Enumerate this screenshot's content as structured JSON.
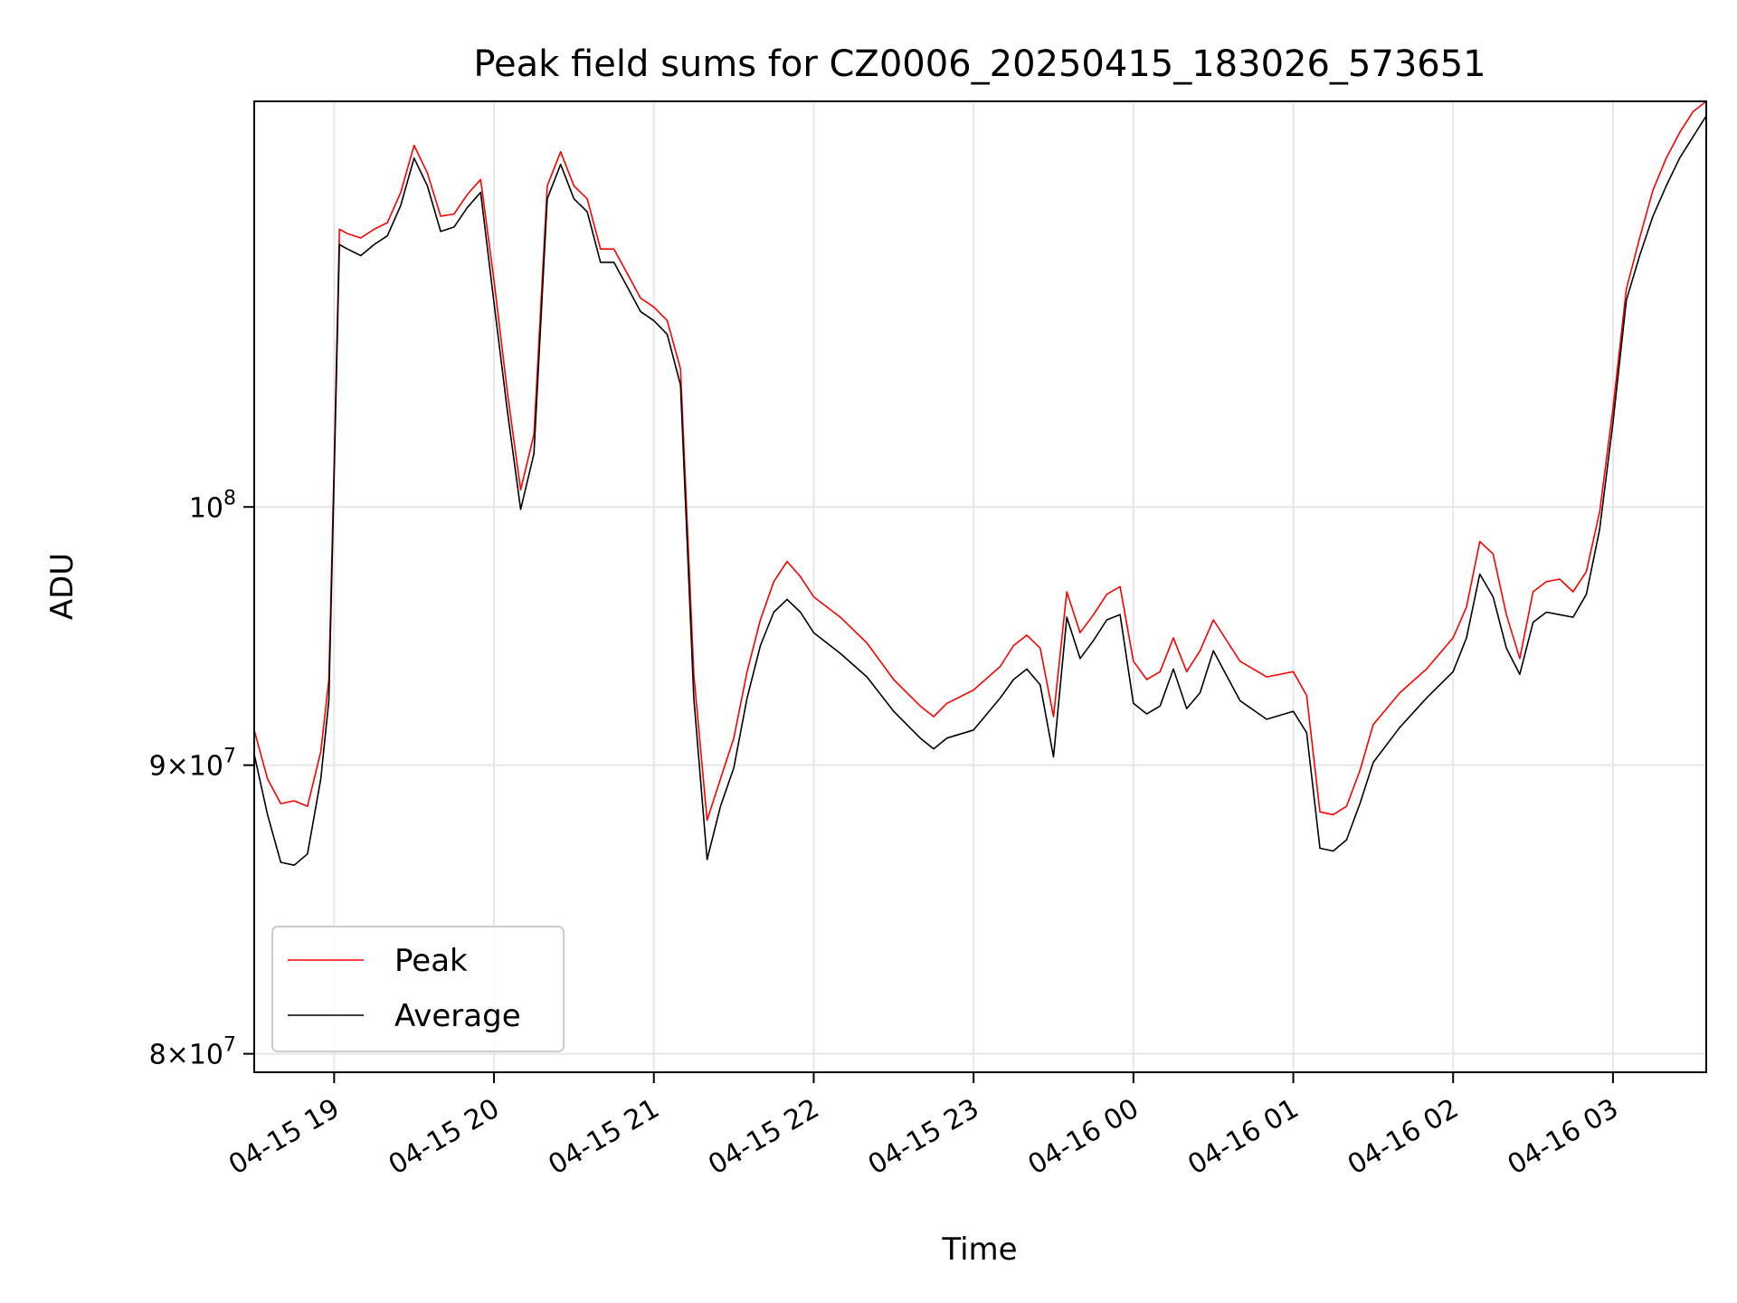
{
  "chart_data": {
    "type": "line",
    "title": "Peak field sums for CZ0006_20250415_183026_573651",
    "xlabel": "Time",
    "ylabel": "ADU",
    "y_scale": "log",
    "xlim": [
      "2025-04-15 18:30",
      "2025-04-16 03:35"
    ],
    "ylim": [
      79400000,
      118000000
    ],
    "x_ticks": [
      "04-15 19",
      "04-15 20",
      "04-15 21",
      "04-15 22",
      "04-15 23",
      "04-16 00",
      "04-16 01",
      "04-16 02",
      "04-16 03"
    ],
    "x_tick_times": [
      "2025-04-15 19:00",
      "2025-04-15 20:00",
      "2025-04-15 21:00",
      "2025-04-15 22:00",
      "2025-04-15 23:00",
      "2025-04-16 00:00",
      "2025-04-16 01:00",
      "2025-04-16 02:00",
      "2025-04-16 03:00"
    ],
    "y_ticks": [
      {
        "value": 80000000,
        "mantissa": "8",
        "base": "10",
        "exp": "7"
      },
      {
        "value": 90000000,
        "mantissa": "9",
        "base": "10",
        "exp": "7"
      },
      {
        "value": 100000000,
        "mantissa": "",
        "base": "10",
        "exp": "8"
      }
    ],
    "grid": true,
    "legend": "lower-left",
    "series": [
      {
        "name": "Peak",
        "color": "#ff0000",
        "x": [
          "2025-04-15 18:30",
          "2025-04-15 18:35",
          "2025-04-15 18:40",
          "2025-04-15 18:45",
          "2025-04-15 18:50",
          "2025-04-15 18:55",
          "2025-04-15 18:58",
          "2025-04-15 19:00",
          "2025-04-15 19:02",
          "2025-04-15 19:05",
          "2025-04-15 19:10",
          "2025-04-15 19:15",
          "2025-04-15 19:20",
          "2025-04-15 19:25",
          "2025-04-15 19:30",
          "2025-04-15 19:35",
          "2025-04-15 19:40",
          "2025-04-15 19:45",
          "2025-04-15 19:50",
          "2025-04-15 19:55",
          "2025-04-15 20:00",
          "2025-04-15 20:05",
          "2025-04-15 20:10",
          "2025-04-15 20:15",
          "2025-04-15 20:20",
          "2025-04-15 20:25",
          "2025-04-15 20:30",
          "2025-04-15 20:35",
          "2025-04-15 20:40",
          "2025-04-15 20:45",
          "2025-04-15 20:50",
          "2025-04-15 20:55",
          "2025-04-15 21:00",
          "2025-04-15 21:05",
          "2025-04-15 21:10",
          "2025-04-15 21:15",
          "2025-04-15 21:20",
          "2025-04-15 21:25",
          "2025-04-15 21:30",
          "2025-04-15 21:35",
          "2025-04-15 21:40",
          "2025-04-15 21:45",
          "2025-04-15 21:50",
          "2025-04-15 21:55",
          "2025-04-15 22:00",
          "2025-04-15 22:10",
          "2025-04-15 22:20",
          "2025-04-15 22:30",
          "2025-04-15 22:40",
          "2025-04-15 22:45",
          "2025-04-15 22:50",
          "2025-04-15 23:00",
          "2025-04-15 23:10",
          "2025-04-15 23:15",
          "2025-04-15 23:20",
          "2025-04-15 23:25",
          "2025-04-15 23:30",
          "2025-04-15 23:35",
          "2025-04-15 23:40",
          "2025-04-15 23:45",
          "2025-04-15 23:50",
          "2025-04-15 23:55",
          "2025-04-16 00:00",
          "2025-04-16 00:05",
          "2025-04-16 00:10",
          "2025-04-16 00:15",
          "2025-04-16 00:20",
          "2025-04-16 00:25",
          "2025-04-16 00:30",
          "2025-04-16 00:40",
          "2025-04-16 00:50",
          "2025-04-16 01:00",
          "2025-04-16 01:05",
          "2025-04-16 01:10",
          "2025-04-16 01:15",
          "2025-04-16 01:20",
          "2025-04-16 01:25",
          "2025-04-16 01:30",
          "2025-04-16 01:40",
          "2025-04-16 01:50",
          "2025-04-16 02:00",
          "2025-04-16 02:05",
          "2025-04-16 02:10",
          "2025-04-16 02:15",
          "2025-04-16 02:20",
          "2025-04-16 02:25",
          "2025-04-16 02:30",
          "2025-04-16 02:35",
          "2025-04-16 02:40",
          "2025-04-16 02:45",
          "2025-04-16 02:50",
          "2025-04-16 02:55",
          "2025-04-16 03:00",
          "2025-04-16 03:05",
          "2025-04-16 03:10",
          "2025-04-16 03:15",
          "2025-04-16 03:20",
          "2025-04-16 03:25",
          "2025-04-16 03:30",
          "2025-04-16 03:35"
        ],
        "values": [
          91300000,
          89500000,
          88600000,
          88700000,
          88500000,
          90500000,
          93200000,
          101700000,
          112000000,
          111800000,
          111600000,
          112000000,
          112300000,
          113700000,
          115900000,
          114600000,
          112600000,
          112700000,
          113600000,
          114300000,
          109700000,
          104800000,
          100700000,
          103000000,
          114000000,
          115600000,
          114000000,
          113400000,
          111100000,
          111100000,
          110000000,
          108900000,
          108500000,
          107900000,
          105800000,
          93400000,
          88000000,
          89500000,
          91000000,
          93500000,
          95500000,
          97000000,
          97800000,
          97200000,
          96400000,
          95600000,
          94600000,
          93200000,
          92200000,
          91800000,
          92300000,
          92800000,
          93700000,
          94500000,
          94900000,
          94400000,
          91800000,
          96600000,
          95000000,
          95700000,
          96500000,
          96800000,
          93900000,
          93200000,
          93500000,
          94800000,
          93500000,
          94300000,
          95500000,
          93900000,
          93300000,
          93500000,
          92600000,
          88300000,
          88200000,
          88500000,
          89800000,
          91500000,
          92700000,
          93600000,
          94800000,
          96000000,
          98600000,
          98100000,
          95700000,
          94000000,
          96600000,
          97000000,
          97100000,
          96600000,
          97400000,
          99800000,
          104100000,
          109300000,
          111600000,
          113800000,
          115300000,
          116500000,
          117500000,
          118000000
        ]
      },
      {
        "name": "Average",
        "color": "#000000",
        "x": [
          "2025-04-15 18:30",
          "2025-04-15 18:35",
          "2025-04-15 18:40",
          "2025-04-15 18:45",
          "2025-04-15 18:50",
          "2025-04-15 18:55",
          "2025-04-15 18:58",
          "2025-04-15 19:00",
          "2025-04-15 19:02",
          "2025-04-15 19:05",
          "2025-04-15 19:10",
          "2025-04-15 19:15",
          "2025-04-15 19:20",
          "2025-04-15 19:25",
          "2025-04-15 19:30",
          "2025-04-15 19:35",
          "2025-04-15 19:40",
          "2025-04-15 19:45",
          "2025-04-15 19:50",
          "2025-04-15 19:55",
          "2025-04-15 20:00",
          "2025-04-15 20:05",
          "2025-04-15 20:10",
          "2025-04-15 20:15",
          "2025-04-15 20:20",
          "2025-04-15 20:25",
          "2025-04-15 20:30",
          "2025-04-15 20:35",
          "2025-04-15 20:40",
          "2025-04-15 20:45",
          "2025-04-15 20:50",
          "2025-04-15 20:55",
          "2025-04-15 21:00",
          "2025-04-15 21:05",
          "2025-04-15 21:10",
          "2025-04-15 21:15",
          "2025-04-15 21:20",
          "2025-04-15 21:25",
          "2025-04-15 21:30",
          "2025-04-15 21:35",
          "2025-04-15 21:40",
          "2025-04-15 21:45",
          "2025-04-15 21:50",
          "2025-04-15 21:55",
          "2025-04-15 22:00",
          "2025-04-15 22:10",
          "2025-04-15 22:20",
          "2025-04-15 22:30",
          "2025-04-15 22:40",
          "2025-04-15 22:45",
          "2025-04-15 22:50",
          "2025-04-15 23:00",
          "2025-04-15 23:10",
          "2025-04-15 23:15",
          "2025-04-15 23:20",
          "2025-04-15 23:25",
          "2025-04-15 23:30",
          "2025-04-15 23:35",
          "2025-04-15 23:40",
          "2025-04-15 23:45",
          "2025-04-15 23:50",
          "2025-04-15 23:55",
          "2025-04-16 00:00",
          "2025-04-16 00:05",
          "2025-04-16 00:10",
          "2025-04-16 00:15",
          "2025-04-16 00:20",
          "2025-04-16 00:25",
          "2025-04-16 00:30",
          "2025-04-16 00:40",
          "2025-04-16 00:50",
          "2025-04-16 01:00",
          "2025-04-16 01:05",
          "2025-04-16 01:10",
          "2025-04-16 01:15",
          "2025-04-16 01:20",
          "2025-04-16 01:25",
          "2025-04-16 01:30",
          "2025-04-16 01:40",
          "2025-04-16 01:50",
          "2025-04-16 02:00",
          "2025-04-16 02:05",
          "2025-04-16 02:10",
          "2025-04-16 02:15",
          "2025-04-16 02:20",
          "2025-04-16 02:25",
          "2025-04-16 02:30",
          "2025-04-16 02:35",
          "2025-04-16 02:40",
          "2025-04-16 02:45",
          "2025-04-16 02:50",
          "2025-04-16 02:55",
          "2025-04-16 03:00",
          "2025-04-16 03:05",
          "2025-04-16 03:10",
          "2025-04-16 03:15",
          "2025-04-16 03:20",
          "2025-04-16 03:25",
          "2025-04-16 03:30",
          "2025-04-16 03:35"
        ],
        "values": [
          90400000,
          88200000,
          86500000,
          86400000,
          86800000,
          89500000,
          92400000,
          101200000,
          111300000,
          111100000,
          110800000,
          111300000,
          111700000,
          113100000,
          115300000,
          114000000,
          111900000,
          112100000,
          113000000,
          113700000,
          108700000,
          104000000,
          99900000,
          102200000,
          113400000,
          115000000,
          113400000,
          112800000,
          110500000,
          110500000,
          109400000,
          108300000,
          107900000,
          107300000,
          105100000,
          92500000,
          86600000,
          88500000,
          89900000,
          92500000,
          94500000,
          95800000,
          96300000,
          95800000,
          95000000,
          94200000,
          93300000,
          92000000,
          91000000,
          90600000,
          91000000,
          91300000,
          92500000,
          93200000,
          93600000,
          93000000,
          90300000,
          95600000,
          94000000,
          94700000,
          95500000,
          95700000,
          92300000,
          91900000,
          92200000,
          93600000,
          92100000,
          92700000,
          94300000,
          92400000,
          91700000,
          92000000,
          91200000,
          87000000,
          86900000,
          87300000,
          88600000,
          90100000,
          91400000,
          92500000,
          93500000,
          94800000,
          97300000,
          96400000,
          94400000,
          93400000,
          95400000,
          95800000,
          95700000,
          95600000,
          96500000,
          99100000,
          103500000,
          108800000,
          110800000,
          112600000,
          114000000,
          115300000,
          116300000,
          117300000
        ]
      }
    ],
    "annotations": []
  }
}
